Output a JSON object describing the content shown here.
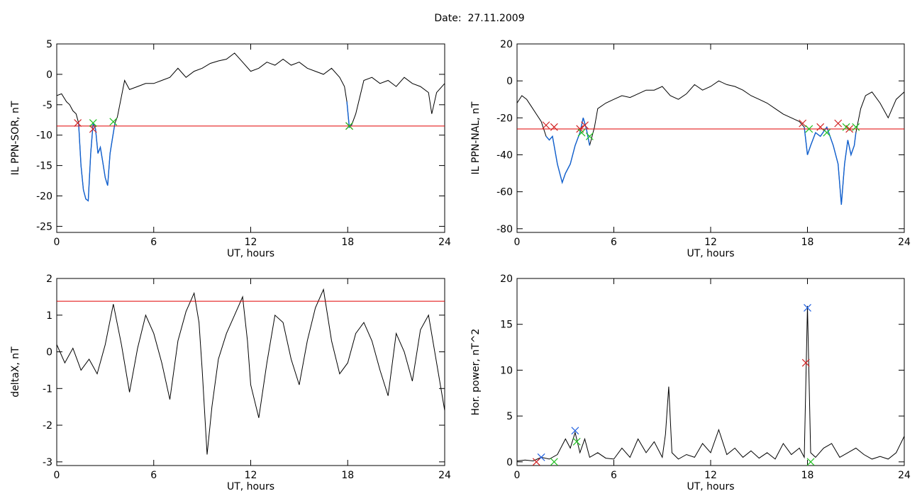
{
  "page": {
    "title_label": "Date:",
    "title_date": "27.11.2009"
  },
  "colors": {
    "axis": "#000000",
    "trace": "#000000",
    "threshold": "#e00000",
    "highlight": "#1060d0",
    "marker_red": "#d02020",
    "marker_green": "#20c020",
    "marker_blue": "#2060e0"
  },
  "chart_data": [
    {
      "type": "line",
      "xlabel": "UT, hours",
      "ylabel": "IL PPN-SOR, nT",
      "xlim": [
        0,
        24
      ],
      "ylim": [
        -26,
        5
      ],
      "xticks": [
        0,
        6,
        12,
        18,
        24
      ],
      "yticks": [
        5,
        0,
        -5,
        -10,
        -15,
        -20,
        -25
      ],
      "threshold": -8.5,
      "series": [
        {
          "x": [
            0,
            0.3,
            0.6,
            0.8,
            1.0,
            1.2,
            1.35,
            1.5,
            1.65,
            1.8,
            1.95,
            2.1,
            2.25,
            2.4,
            2.55,
            2.7,
            2.85,
            3.0,
            3.15,
            3.3,
            3.45,
            3.6,
            3.75,
            3.9,
            4.2,
            4.5,
            5.0,
            5.5,
            6.0,
            6.5,
            7.0,
            7.5,
            8.0,
            8.5,
            9.0,
            9.5,
            10.0,
            10.5,
            11.0,
            11.5,
            12.0,
            12.5,
            13.0,
            13.5,
            14.0,
            14.5,
            15.0,
            15.5,
            16.0,
            16.5,
            17.0,
            17.5,
            17.8,
            17.95,
            18.1,
            18.25,
            18.5,
            19.0,
            19.5,
            20.0,
            20.5,
            21.0,
            21.5,
            22.0,
            22.5,
            23.0,
            23.2,
            23.5,
            24.0
          ],
          "y": [
            -3.5,
            -3.2,
            -4.5,
            -5.0,
            -6.0,
            -6.5,
            -8.0,
            -15.0,
            -19.0,
            -20.5,
            -20.8,
            -13.0,
            -8.0,
            -9.0,
            -13.0,
            -12.0,
            -14.5,
            -17.0,
            -18.3,
            -13.0,
            -10.5,
            -8.0,
            -7.0,
            -5.0,
            -1.0,
            -2.5,
            -2.0,
            -1.5,
            -1.5,
            -1.0,
            -0.5,
            1.0,
            -0.5,
            0.5,
            1.0,
            1.8,
            2.2,
            2.5,
            3.5,
            2.0,
            0.5,
            1.0,
            2.0,
            1.5,
            2.5,
            1.5,
            2.0,
            1.0,
            0.5,
            0.0,
            1.0,
            -0.5,
            -2.0,
            -4.5,
            -8.7,
            -8.3,
            -6.5,
            -1.0,
            -0.5,
            -1.5,
            -1.0,
            -2.0,
            -0.5,
            -1.5,
            -2.0,
            -3.0,
            -6.5,
            -3.0,
            -1.5
          ],
          "highlight_ranges": [
            [
              1.35,
              3.6
            ],
            [
              17.95,
              18.3
            ]
          ]
        }
      ],
      "markers": [
        {
          "x": 1.3,
          "y": -8.0,
          "color": "red"
        },
        {
          "x": 2.25,
          "y": -9.0,
          "color": "red"
        },
        {
          "x": 2.25,
          "y": -8.0,
          "color": "green"
        },
        {
          "x": 3.5,
          "y": -7.8,
          "color": "green"
        },
        {
          "x": 18.1,
          "y": -8.5,
          "color": "red"
        },
        {
          "x": 18.1,
          "y": -8.5,
          "color": "green"
        }
      ]
    },
    {
      "type": "line",
      "xlabel": "UT, hours",
      "ylabel": "IL PPN-NAL, nT",
      "xlim": [
        0,
        24
      ],
      "ylim": [
        -82,
        20
      ],
      "xticks": [
        0,
        6,
        12,
        18,
        24
      ],
      "yticks": [
        20,
        0,
        -20,
        -40,
        -60,
        -80
      ],
      "threshold": -26,
      "series": [
        {
          "x": [
            0,
            0.3,
            0.6,
            0.9,
            1.2,
            1.5,
            1.8,
            2.0,
            2.2,
            2.5,
            2.8,
            3.0,
            3.3,
            3.6,
            3.9,
            4.1,
            4.3,
            4.5,
            4.8,
            5.0,
            5.5,
            6.0,
            6.5,
            7.0,
            7.5,
            8.0,
            8.5,
            9.0,
            9.5,
            10.0,
            10.5,
            11.0,
            11.5,
            12.0,
            12.5,
            13.0,
            13.5,
            14.0,
            14.5,
            15.0,
            15.5,
            16.0,
            16.5,
            17.0,
            17.5,
            17.8,
            18.0,
            18.2,
            18.5,
            18.8,
            19.2,
            19.6,
            19.9,
            20.1,
            20.3,
            20.5,
            20.7,
            20.9,
            21.0,
            21.3,
            21.6,
            22.0,
            22.5,
            23.0,
            23.5,
            24.0
          ],
          "y": [
            -12,
            -8,
            -10,
            -14,
            -18,
            -22,
            -30,
            -32,
            -30,
            -45,
            -55,
            -50,
            -45,
            -35,
            -28,
            -20,
            -26,
            -35,
            -25,
            -15,
            -12,
            -10,
            -8,
            -9,
            -7,
            -5,
            -5,
            -3,
            -8,
            -10,
            -7,
            -2,
            -5,
            -3,
            0,
            -2,
            -3,
            -5,
            -8,
            -10,
            -12,
            -15,
            -18,
            -20,
            -22,
            -25,
            -40,
            -35,
            -28,
            -30,
            -25,
            -35,
            -45,
            -67,
            -45,
            -32,
            -40,
            -35,
            -28,
            -15,
            -8,
            -6,
            -12,
            -20,
            -10,
            -6
          ],
          "highlight_ranges": [
            [
              1.8,
              4.5
            ],
            [
              17.8,
              21.0
            ]
          ]
        }
      ],
      "markers": [
        {
          "x": 1.8,
          "y": -24,
          "color": "red"
        },
        {
          "x": 2.3,
          "y": -25,
          "color": "red"
        },
        {
          "x": 3.9,
          "y": -26,
          "color": "red"
        },
        {
          "x": 4.2,
          "y": -24,
          "color": "red"
        },
        {
          "x": 4.0,
          "y": -28,
          "color": "green"
        },
        {
          "x": 4.5,
          "y": -30,
          "color": "green"
        },
        {
          "x": 17.7,
          "y": -23,
          "color": "red"
        },
        {
          "x": 18.1,
          "y": -26,
          "color": "green"
        },
        {
          "x": 18.8,
          "y": -25,
          "color": "red"
        },
        {
          "x": 19.2,
          "y": -28,
          "color": "green"
        },
        {
          "x": 19.9,
          "y": -23,
          "color": "red"
        },
        {
          "x": 20.4,
          "y": -25,
          "color": "green"
        },
        {
          "x": 20.6,
          "y": -26,
          "color": "red"
        },
        {
          "x": 21.0,
          "y": -25,
          "color": "green"
        }
      ]
    },
    {
      "type": "line",
      "xlabel": "UT, hours",
      "ylabel": "deltaX, nT",
      "xlim": [
        0,
        24
      ],
      "ylim": [
        -3.1,
        2.0
      ],
      "xticks": [
        0,
        6,
        12,
        18,
        24
      ],
      "yticks": [
        2,
        1,
        0,
        -1,
        -2,
        -3
      ],
      "threshold": 1.38,
      "series": [
        {
          "x": [
            0,
            0.5,
            1.0,
            1.5,
            2.0,
            2.5,
            3.0,
            3.5,
            4.0,
            4.5,
            5.0,
            5.5,
            6.0,
            6.5,
            7.0,
            7.5,
            8.0,
            8.5,
            8.8,
            9.0,
            9.3,
            9.6,
            10.0,
            10.5,
            11.0,
            11.5,
            11.8,
            12.0,
            12.5,
            13.0,
            13.5,
            14.0,
            14.5,
            15.0,
            15.5,
            16.0,
            16.5,
            17.0,
            17.5,
            18.0,
            18.5,
            19.0,
            19.5,
            20.0,
            20.5,
            21.0,
            21.5,
            22.0,
            22.5,
            23.0,
            23.5,
            24.0
          ],
          "y": [
            0.2,
            -0.3,
            0.1,
            -0.5,
            -0.2,
            -0.6,
            0.2,
            1.3,
            0.2,
            -1.1,
            0.1,
            1.0,
            0.5,
            -0.3,
            -1.3,
            0.3,
            1.1,
            1.6,
            0.8,
            -0.5,
            -2.8,
            -1.5,
            -0.2,
            0.5,
            1.0,
            1.5,
            0.3,
            -0.9,
            -1.8,
            -0.3,
            1.0,
            0.8,
            -0.2,
            -0.9,
            0.3,
            1.2,
            1.7,
            0.3,
            -0.6,
            -0.3,
            0.5,
            0.8,
            0.3,
            -0.5,
            -1.2,
            0.5,
            0.0,
            -0.8,
            0.6,
            1.0,
            -0.3,
            -1.6
          ]
        }
      ]
    },
    {
      "type": "line",
      "xlabel": "UT, hours",
      "ylabel": "Hor. power, nT^2",
      "xlim": [
        0,
        24
      ],
      "ylim": [
        -0.4,
        20
      ],
      "xticks": [
        0,
        6,
        12,
        18,
        24
      ],
      "yticks": [
        20,
        15,
        10,
        5,
        0
      ],
      "threshold": null,
      "series": [
        {
          "x": [
            0,
            0.5,
            1.0,
            1.5,
            2.0,
            2.5,
            3.0,
            3.3,
            3.6,
            3.9,
            4.2,
            4.5,
            5.0,
            5.5,
            6.0,
            6.5,
            7.0,
            7.5,
            8.0,
            8.5,
            9.0,
            9.2,
            9.4,
            9.6,
            10.0,
            10.5,
            11.0,
            11.5,
            12.0,
            12.5,
            13.0,
            13.5,
            14.0,
            14.5,
            15.0,
            15.5,
            16.0,
            16.5,
            17.0,
            17.5,
            17.8,
            18.0,
            18.2,
            18.5,
            19.0,
            19.5,
            20.0,
            20.5,
            21.0,
            21.5,
            22.0,
            22.5,
            23.0,
            23.5,
            24.0
          ],
          "y": [
            0.1,
            0.2,
            0.1,
            0.5,
            0.3,
            0.8,
            2.5,
            1.5,
            3.2,
            1.0,
            2.5,
            0.5,
            1.0,
            0.4,
            0.3,
            1.5,
            0.5,
            2.5,
            1.0,
            2.2,
            0.5,
            3.0,
            8.2,
            1.0,
            0.3,
            0.8,
            0.5,
            2.0,
            1.0,
            3.5,
            0.8,
            1.5,
            0.5,
            1.2,
            0.4,
            1.0,
            0.3,
            2.0,
            0.8,
            1.5,
            0.5,
            17.0,
            1.0,
            0.5,
            1.5,
            2.0,
            0.5,
            1.0,
            1.5,
            0.8,
            0.3,
            0.6,
            0.3,
            1.0,
            2.8
          ]
        }
      ],
      "markers": [
        {
          "x": 1.5,
          "y": 0.5,
          "color": "blue"
        },
        {
          "x": 1.2,
          "y": 0.0,
          "color": "red"
        },
        {
          "x": 2.3,
          "y": 0.0,
          "color": "green"
        },
        {
          "x": 3.6,
          "y": 3.4,
          "color": "blue"
        },
        {
          "x": 3.7,
          "y": 2.2,
          "color": "green"
        },
        {
          "x": 18.0,
          "y": 16.8,
          "color": "blue"
        },
        {
          "x": 17.9,
          "y": 10.8,
          "color": "red"
        },
        {
          "x": 18.2,
          "y": 0.0,
          "color": "green"
        }
      ]
    }
  ]
}
